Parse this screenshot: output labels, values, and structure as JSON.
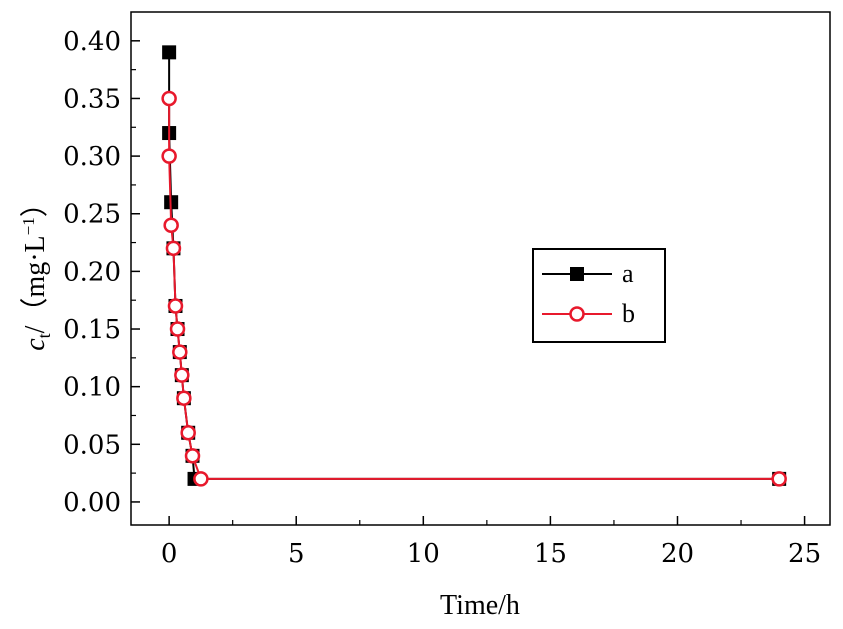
{
  "chart_data": {
    "type": "line",
    "xlabel": "Time/h",
    "ylabel": {
      "symbol": "c",
      "subscript": "t",
      "unit_open": "/（mg·L",
      "exponent": "−1",
      "unit_close": "）"
    },
    "xlim": [
      -1.5,
      26
    ],
    "ylim": [
      -0.02,
      0.425
    ],
    "x_ticks": [
      0,
      5,
      10,
      15,
      20,
      25
    ],
    "x_tick_labels": [
      "0",
      "5",
      "10",
      "15",
      "20",
      "25"
    ],
    "y_ticks": [
      0.0,
      0.05,
      0.1,
      0.15,
      0.2,
      0.25,
      0.3,
      0.35,
      0.4
    ],
    "y_tick_labels": [
      "0.00",
      "0.05",
      "0.10",
      "0.15",
      "0.20",
      "0.25",
      "0.30",
      "0.35",
      "0.40"
    ],
    "grid": false,
    "legend_position": "center-right",
    "series": [
      {
        "name": "a",
        "color": "#000000",
        "marker": "filled-square",
        "x": [
          0,
          0,
          0.08,
          0.17,
          0.25,
          0.33,
          0.42,
          0.5,
          0.58,
          0.75,
          0.92,
          1.0,
          24
        ],
        "y": [
          0.39,
          0.32,
          0.26,
          0.22,
          0.17,
          0.15,
          0.13,
          0.11,
          0.09,
          0.06,
          0.04,
          0.02,
          0.02
        ]
      },
      {
        "name": "b",
        "color": "#e8192c",
        "marker": "open-circle",
        "x": [
          0,
          0,
          0.08,
          0.17,
          0.25,
          0.33,
          0.42,
          0.5,
          0.58,
          0.75,
          0.92,
          1.25,
          24
        ],
        "y": [
          0.35,
          0.3,
          0.24,
          0.22,
          0.17,
          0.15,
          0.13,
          0.11,
          0.09,
          0.06,
          0.04,
          0.02,
          0.02
        ]
      }
    ]
  }
}
